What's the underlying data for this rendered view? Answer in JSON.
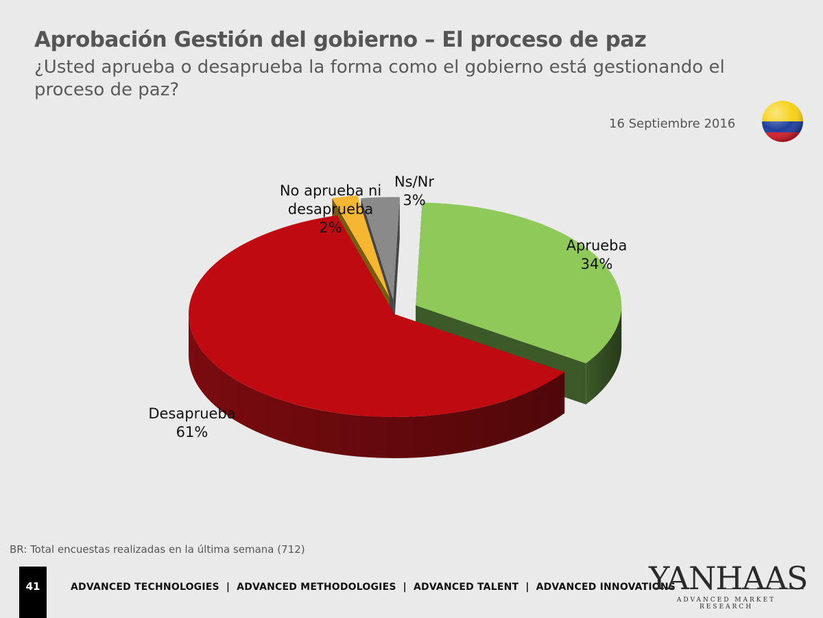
{
  "header": {
    "title": "Aprobación Gestión del gobierno – El proceso de paz",
    "subtitle": "¿Usted aprueba o desaprueba la forma como el gobierno está gestionando el proceso de paz?",
    "date": "16 Septiembre 2016"
  },
  "chart_data": {
    "type": "pie",
    "title": "Aprobación Gestión del gobierno – El proceso de paz",
    "slices": [
      {
        "label": "Aprueba",
        "label_lines": [
          "Aprueba"
        ],
        "value": 34,
        "value_text": "34%",
        "color": "#8fc95a",
        "side_color": "#3c5a28"
      },
      {
        "label": "Desaprueba",
        "label_lines": [
          "Desaprueba"
        ],
        "value": 61,
        "value_text": "61%",
        "color": "#c00a12",
        "side_color": "#7a0b0f"
      },
      {
        "label": "No aprueba ni desaprueba",
        "label_lines": [
          "No aprueba ni",
          "desaprueba"
        ],
        "value": 2,
        "value_text": "2%",
        "color": "#f5b731",
        "side_color": "#7a5a10"
      },
      {
        "label": "Ns/Nr",
        "label_lines": [
          "Ns/Nr"
        ],
        "value": 3,
        "value_text": "3%",
        "color": "#8a8a8a",
        "side_color": "#454545"
      }
    ],
    "legend": "none"
  },
  "footnote": "BR: Total encuestas realizadas en la última semana (712)",
  "footer": {
    "page_number": "41",
    "items": [
      "ADVANCED TECHNOLOGIES",
      "ADVANCED METHODOLOGIES",
      "ADVANCED TALENT",
      "ADVANCED INNOVATIONS"
    ],
    "separator": "|"
  },
  "logo": {
    "name": "YANHAAS",
    "tagline": "ADVANCED MARKET RESEARCH"
  },
  "flag": {
    "icon": "colombia-flag-icon",
    "colors": [
      "#f7d116",
      "#1f3f9c",
      "#d21f2b"
    ]
  }
}
